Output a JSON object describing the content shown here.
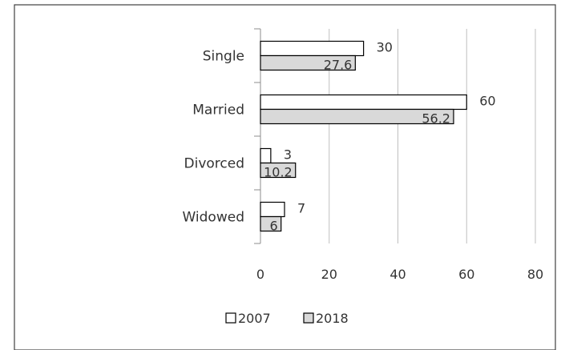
{
  "chart_data": {
    "type": "bar",
    "orientation": "horizontal",
    "categories": [
      "Single",
      "Married",
      "Divorced",
      "Widowed"
    ],
    "series": [
      {
        "name": "2007",
        "values": [
          30,
          60,
          3,
          7
        ],
        "labels": [
          "30",
          "60",
          "3",
          "7"
        ],
        "fill": "#ffffff",
        "stroke": "#000000"
      },
      {
        "name": "2018",
        "values": [
          27.6,
          56.2,
          10.2,
          6
        ],
        "labels": [
          "27.6",
          "56.2",
          "10.2",
          "6"
        ],
        "fill": "#d9d9d9",
        "stroke": "#000000"
      }
    ],
    "xlim": [
      0,
      80
    ],
    "xticks": [
      "0",
      "20",
      "40",
      "60",
      "80"
    ],
    "title": "",
    "xlabel": "",
    "ylabel": "",
    "grid": true,
    "legend_position": "bottom",
    "colors": {
      "gridline": "#bfbfbf",
      "axis": "#8c8c8c",
      "border": "#3f3f3f"
    }
  }
}
